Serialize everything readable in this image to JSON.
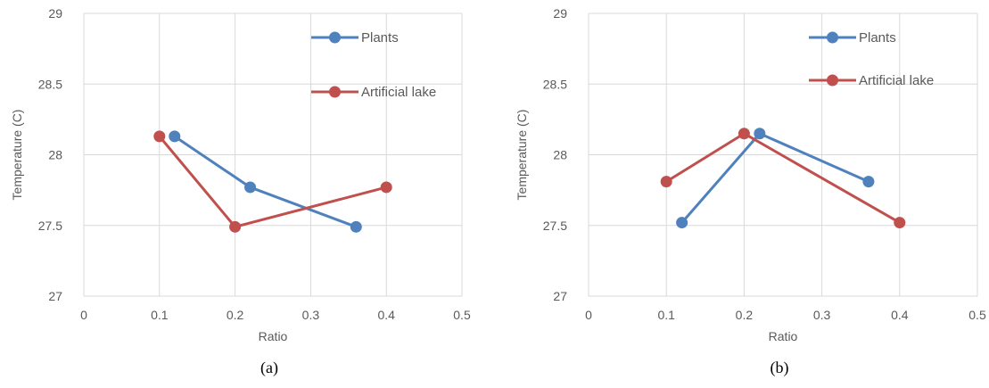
{
  "chart_data": [
    {
      "type": "line",
      "panel_label": "(a)",
      "xlabel": "Ratio",
      "ylabel": "Temperature (C)",
      "xlim": [
        0,
        0.5
      ],
      "ylim": [
        27,
        29
      ],
      "x_ticks": [
        "0",
        "0.1",
        "0.2",
        "0.3",
        "0.4",
        "0.5"
      ],
      "y_ticks": [
        "27",
        "27.5",
        "28",
        "28.5",
        "29"
      ],
      "grid": true,
      "legend_position": "top-right",
      "series": [
        {
          "name": "Plants",
          "color": "#4f81bd",
          "points": [
            [
              0.12,
              28.13
            ],
            [
              0.22,
              27.77
            ],
            [
              0.36,
              27.49
            ]
          ]
        },
        {
          "name": "Artificial lake",
          "color": "#c0504d",
          "points": [
            [
              0.1,
              28.13
            ],
            [
              0.2,
              27.49
            ],
            [
              0.4,
              27.77
            ]
          ]
        }
      ]
    },
    {
      "type": "line",
      "panel_label": "(b)",
      "xlabel": "Ratio",
      "ylabel": "Temperature (C)",
      "xlim": [
        0,
        0.5
      ],
      "ylim": [
        27,
        29
      ],
      "x_ticks": [
        "0",
        "0.1",
        "0.2",
        "0.3",
        "0.4",
        "0.5"
      ],
      "y_ticks": [
        "27",
        "27.5",
        "28",
        "28.5",
        "29"
      ],
      "grid": true,
      "legend_position": "top-right",
      "series": [
        {
          "name": "Plants",
          "color": "#4f81bd",
          "points": [
            [
              0.12,
              27.52
            ],
            [
              0.22,
              28.15
            ],
            [
              0.36,
              27.81
            ]
          ]
        },
        {
          "name": "Artificial lake",
          "color": "#c0504d",
          "points": [
            [
              0.1,
              27.81
            ],
            [
              0.2,
              28.15
            ],
            [
              0.4,
              27.52
            ]
          ]
        }
      ]
    }
  ]
}
